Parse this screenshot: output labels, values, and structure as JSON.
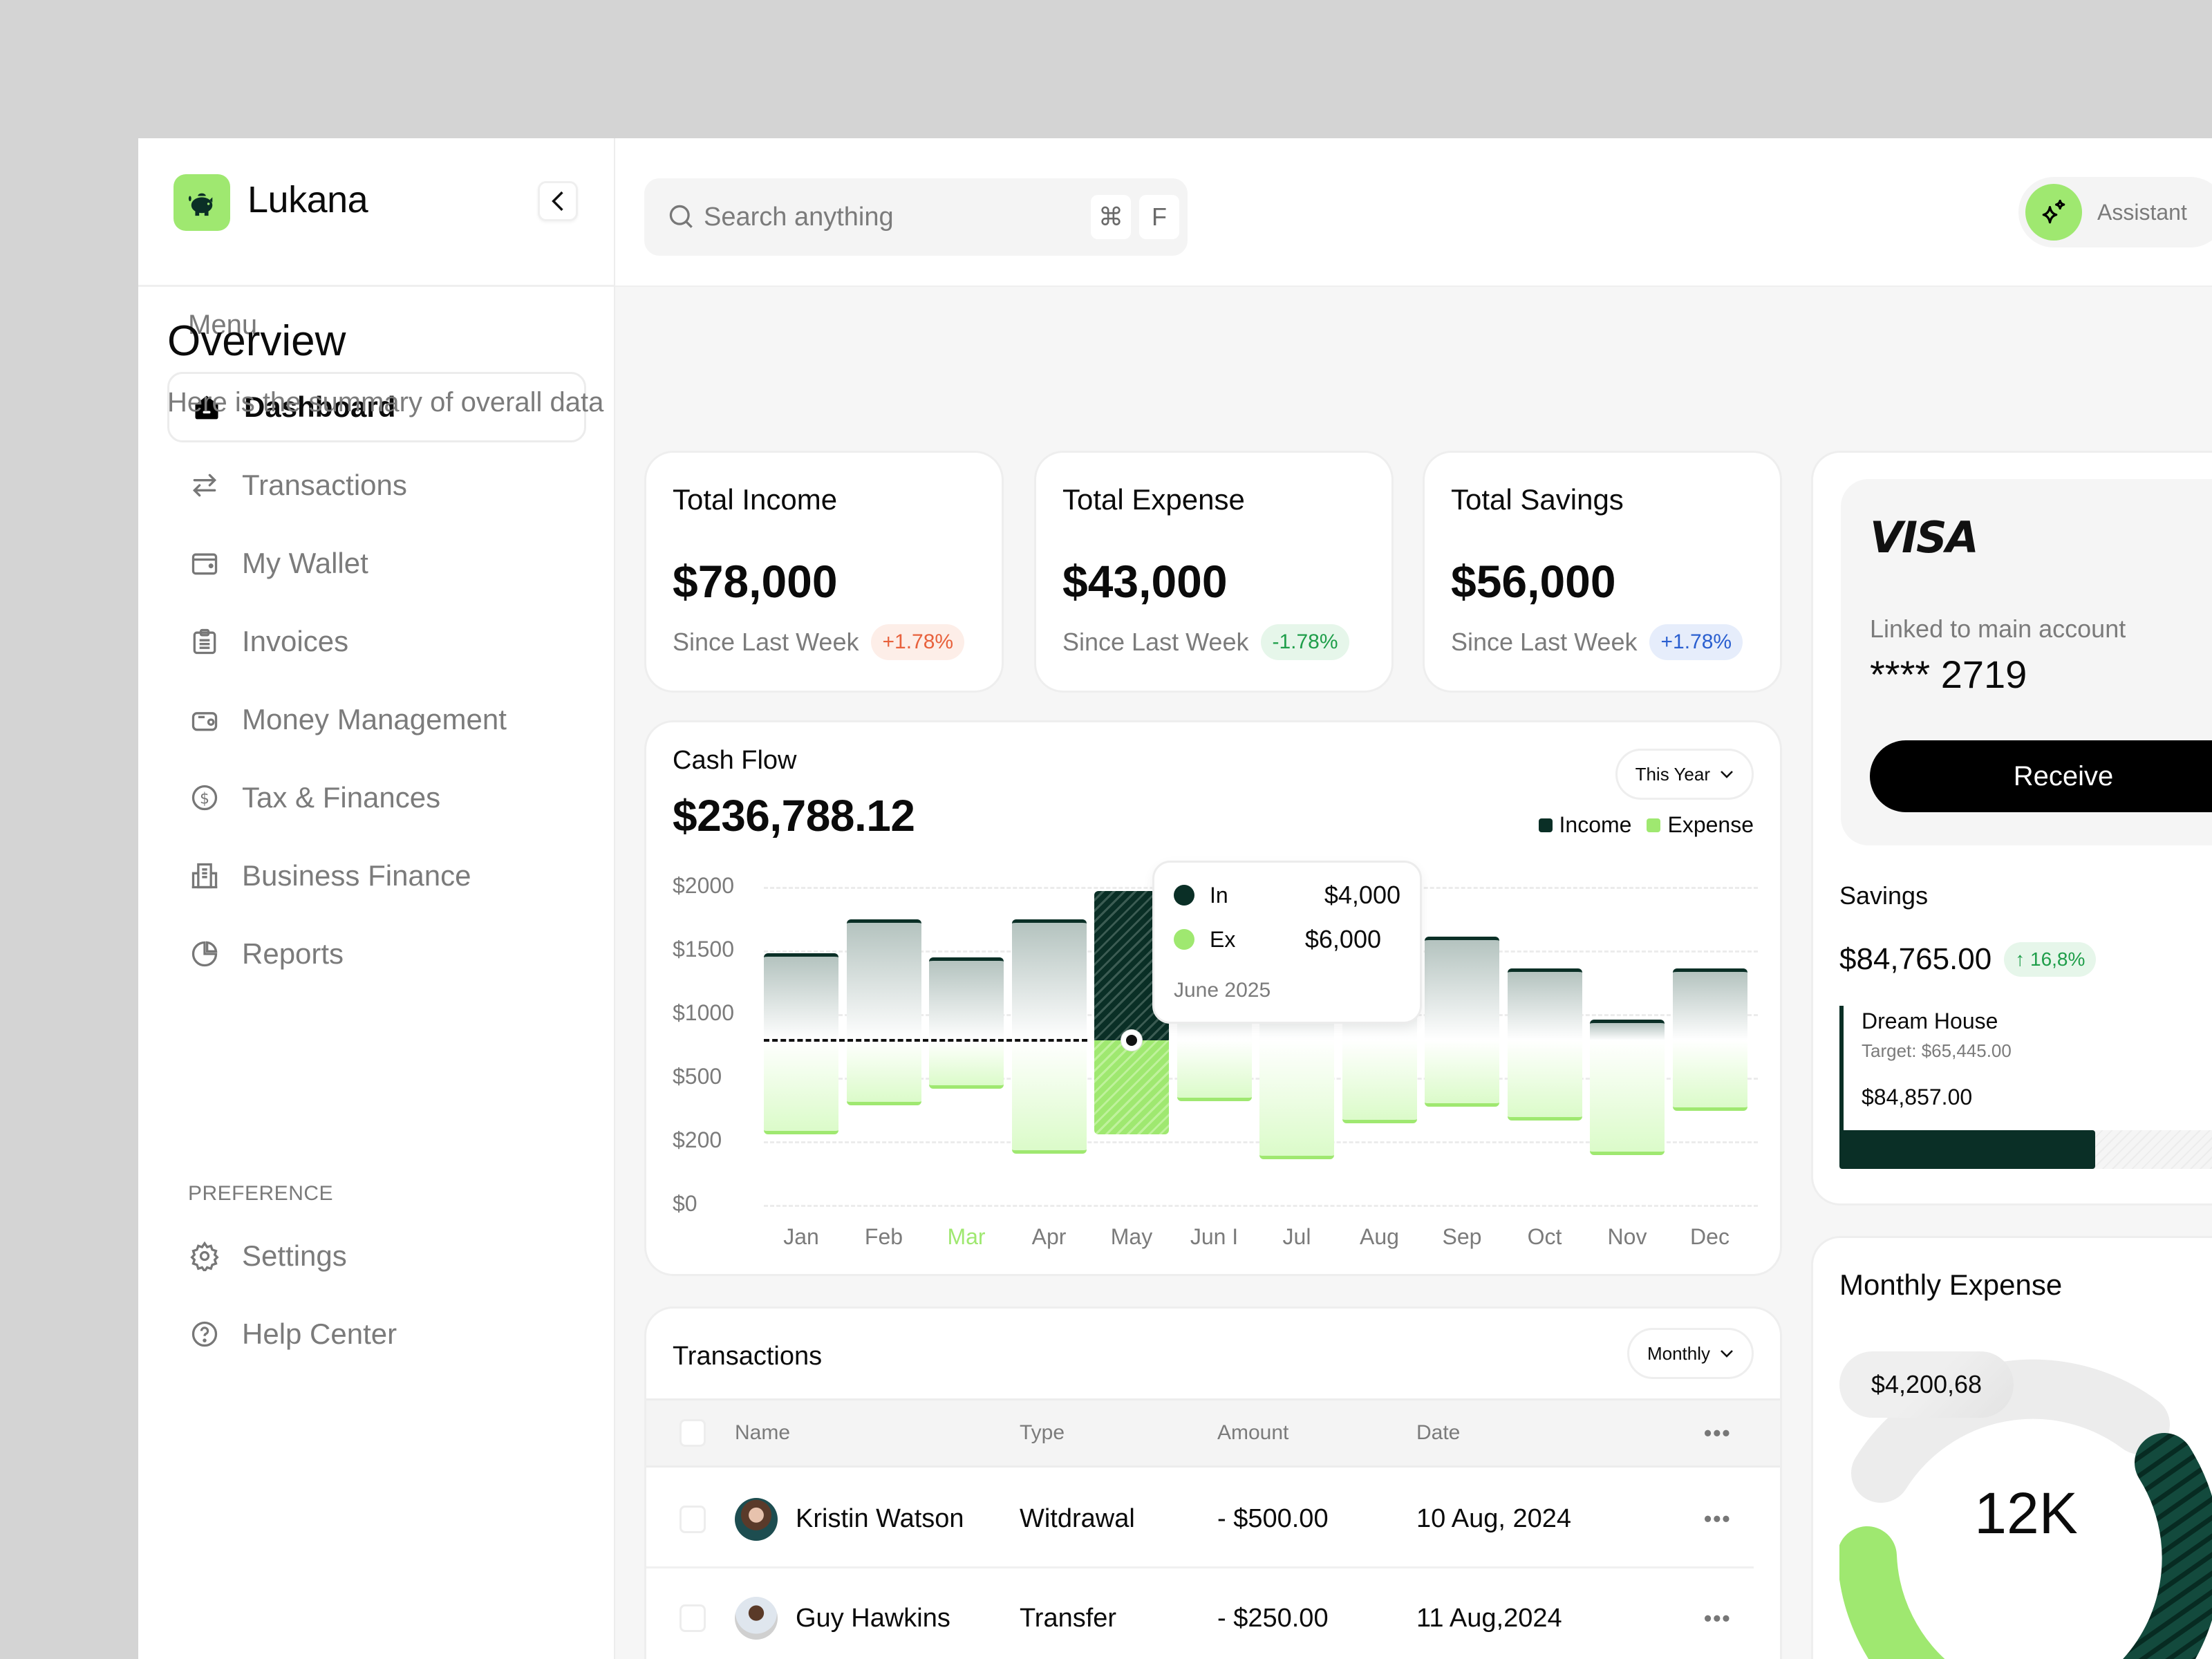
{
  "app": {
    "name": "Lukana"
  },
  "sidebar": {
    "menu_label": "Menu",
    "items": [
      {
        "label": "Dashboard",
        "icon": "home-icon",
        "active": true
      },
      {
        "label": "Transactions",
        "icon": "arrows-swap-icon"
      },
      {
        "label": "My Wallet",
        "icon": "wallet-icon"
      },
      {
        "label": "Invoices",
        "icon": "clipboard-list-icon"
      },
      {
        "label": "Money Management",
        "icon": "wallet-cash-icon"
      },
      {
        "label": "Tax & Finances",
        "icon": "dollar-circle-icon"
      },
      {
        "label": "Business Finance",
        "icon": "building-icon"
      },
      {
        "label": "Reports",
        "icon": "pie-chart-icon"
      }
    ],
    "preference_label": "PREFERENCE",
    "pref_items": [
      {
        "label": "Settings",
        "icon": "gear-icon"
      },
      {
        "label": "Help Center",
        "icon": "help-circle-icon"
      }
    ]
  },
  "header": {
    "search_placeholder": "Search anything",
    "shortcut_keys": [
      "⌘",
      "F"
    ],
    "assistant_label": "Assistant"
  },
  "page": {
    "title": "Overview",
    "subtitle": "Here is the summary of overall data"
  },
  "stats": [
    {
      "title": "Total Income",
      "value": "$78,000",
      "since": "Since Last Week",
      "change": "+1.78%",
      "badge_bg": "#fdeee8",
      "badge_fg": "#e8613c"
    },
    {
      "title": "Total Expense",
      "value": "$43,000",
      "since": "Since Last Week",
      "change": "-1.78%",
      "badge_bg": "#e6f6ea",
      "badge_fg": "#1f9e4a"
    },
    {
      "title": "Total Savings",
      "value": "$56,000",
      "since": "Since Last Week",
      "change": "+1.78%",
      "badge_bg": "#e6edfb",
      "badge_fg": "#2a5fd0"
    }
  ],
  "cashflow": {
    "title": "Cash Flow",
    "total": "$236,788.12",
    "period": "This Year",
    "legend_income": "Income",
    "legend_expense": "Expense",
    "tooltip": {
      "in_label": "In",
      "in_value": "$4,000",
      "ex_label": "Ex",
      "ex_value": "$6,000",
      "date": "June 2025"
    }
  },
  "chart_data": {
    "type": "bar",
    "title": "Cash Flow",
    "categories": [
      "Jan",
      "Feb",
      "Mar",
      "Apr",
      "May",
      "Jun I",
      "Jul",
      "Aug",
      "Sep",
      "Oct",
      "Nov",
      "Dec"
    ],
    "highlighted_category": "Mar",
    "yticks": [
      "$2000",
      "$1500",
      "$1000",
      "$500",
      "$200",
      "$0"
    ],
    "baseline": 760,
    "series": [
      {
        "name": "Income",
        "color": "#0a2f26",
        "values": [
          1450,
          1760,
          1420,
          1760,
          1970,
          1100,
          1000,
          1850,
          1650,
          1400,
          1000,
          1400
        ]
      },
      {
        "name": "Expense",
        "color": "#9fe870",
        "values": [
          260,
          420,
          570,
          130,
          340,
          460,
          80,
          300,
          420,
          240,
          160,
          370
        ]
      }
    ],
    "average_line_value": 760,
    "legend_position": "top-right",
    "grid": true
  },
  "transactions": {
    "title": "Transactions",
    "period": "Monthly",
    "columns": [
      "Name",
      "Type",
      "Amount",
      "Date"
    ],
    "rows": [
      {
        "name": "Kristin Watson",
        "type": "Witdrawal",
        "amount": "- $500.00",
        "date": "10 Aug, 2024"
      },
      {
        "name": "Guy Hawkins",
        "type": "Transfer",
        "amount": "- $250.00",
        "date": "11 Aug,2024"
      }
    ]
  },
  "card": {
    "brand": "VISA",
    "linked_label": "Linked to main account",
    "number": "**** 2719",
    "receive_label": "Receive"
  },
  "savings": {
    "title": "Savings",
    "value": "$84,765.00",
    "change": "↑ 16,8%",
    "goal_name": "Dream House",
    "goal_target": "Target: $65,445.00",
    "goal_amount": "$84,857.00"
  },
  "monthly_expense": {
    "title": "Monthly Expense",
    "pill_value": "$4,200,68",
    "center_value": "12K"
  },
  "colors": {
    "accent_green": "#9fe870",
    "dark_green": "#0a2f26",
    "bg": "#f6f6f6"
  }
}
